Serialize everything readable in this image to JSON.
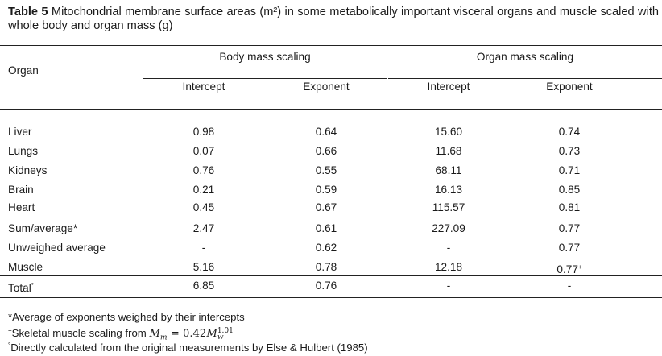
{
  "caption": {
    "label": "Table 5",
    "text": " Mitochondrial membrane surface areas (m²) in some metabolically important visceral organs and muscle scaled with whole body and organ mass (g)"
  },
  "header": {
    "organ": "Organ",
    "group_body": "Body mass scaling",
    "group_organ": "Organ mass scaling",
    "intercept": "Intercept",
    "exponent": "Exponent"
  },
  "rows": [
    {
      "organ": "Liver",
      "b_int": "0.98",
      "b_exp": "0.64",
      "o_int": "15.60",
      "o_exp": "0.74"
    },
    {
      "organ": "Lungs",
      "b_int": "0.07",
      "b_exp": "0.66",
      "o_int": "11.68",
      "o_exp": "0.73"
    },
    {
      "organ": "Kidneys",
      "b_int": "0.76",
      "b_exp": "0.55",
      "o_int": "68.11",
      "o_exp": "0.71"
    },
    {
      "organ": "Brain",
      "b_int": "0.21",
      "b_exp": "0.59",
      "o_int": "16.13",
      "o_exp": "0.85"
    },
    {
      "organ": "Heart",
      "b_int": "0.45",
      "b_exp": "0.67",
      "o_int": "115.57",
      "o_exp": "0.81"
    },
    {
      "organ": "Sum/average",
      "organ_mark": "*",
      "b_int": "2.47",
      "b_exp": "0.61",
      "o_int": "227.09",
      "o_exp": "0.77"
    },
    {
      "organ": "Unweighed average",
      "b_int": "-",
      "b_exp": "0.62",
      "o_int": "-",
      "o_exp": "0.77"
    },
    {
      "organ": "Muscle",
      "b_int": "5.16",
      "b_exp": "0.78",
      "o_int": "12.18",
      "o_exp": "0.77",
      "o_exp_mark": "+"
    },
    {
      "organ": "Total",
      "organ_mark": "°",
      "b_int": "6.85",
      "b_exp": "0.76",
      "o_int": "-",
      "o_exp": "-"
    }
  ],
  "footnotes": {
    "f1": "*Average of exponents weighed by their intercepts",
    "f2_mark": "+",
    "f2_text": "Skeletal muscle scaling from ",
    "f2_formula_lhs": "M",
    "f2_formula_lhs_sub": "m",
    "f2_formula_eq": " = 0.42",
    "f2_formula_rhs": "M",
    "f2_formula_rhs_sub": "w",
    "f2_formula_rhs_sup": "1.01",
    "f3_mark": "°",
    "f3_text": "Directly calculated from the original measurements by Else & Hulbert (1985)"
  }
}
